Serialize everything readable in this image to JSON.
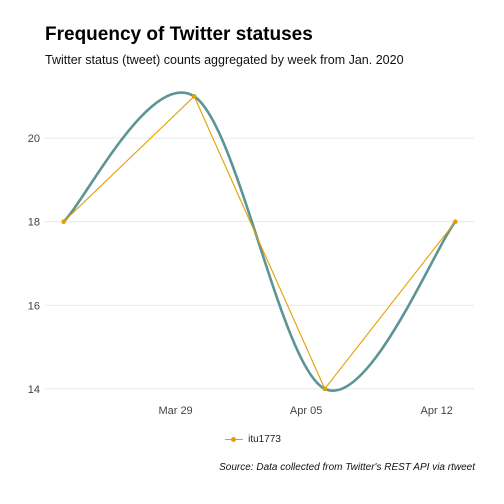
{
  "chart_data": {
    "type": "line",
    "title": "Frequency of Twitter statuses",
    "subtitle": "Twitter status (tweet) counts aggregated by week from Jan. 2020",
    "caption": "Source: Data collected from Twitter's REST API via rtweet",
    "xlabel": "",
    "ylabel": "",
    "x": [
      "2020-03-23",
      "2020-03-30",
      "2020-04-06",
      "2020-04-13"
    ],
    "x_ticks": [
      {
        "date": "2020-03-29",
        "label": "Mar 29"
      },
      {
        "date": "2020-04-05",
        "label": "Apr 05"
      },
      {
        "date": "2020-04-12",
        "label": "Apr 12"
      }
    ],
    "xlim": [
      "2020-03-22",
      "2020-04-14"
    ],
    "ylim": [
      13.9,
      21.2
    ],
    "y_ticks": [
      14,
      16,
      18,
      20
    ],
    "series": [
      {
        "name": "itu1773",
        "values": [
          18,
          21,
          14,
          18
        ],
        "color": "#E69F00",
        "smooth_color": "#5B9595"
      }
    ],
    "grid": "horizontal",
    "legend_position": "bottom"
  }
}
